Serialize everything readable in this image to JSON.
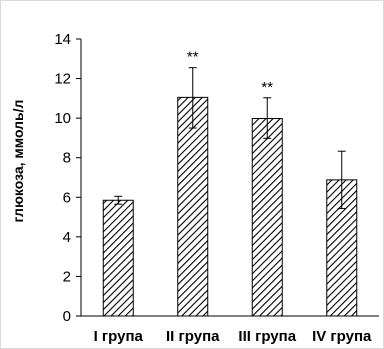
{
  "chart_data": {
    "type": "bar",
    "title": "",
    "xlabel": "",
    "ylabel": "глюкоза, ммоль/л",
    "ylim": [
      0,
      14
    ],
    "yticks": [
      0,
      2,
      4,
      6,
      8,
      10,
      12,
      14
    ],
    "grid": false,
    "legend": "none",
    "categories": [
      "I група",
      "II група",
      "III група",
      "IV група"
    ],
    "values": [
      5.85,
      11.05,
      9.98,
      6.88
    ],
    "error_upper": [
      0.2,
      1.5,
      1.05,
      1.45
    ],
    "error_lower": [
      0.2,
      1.55,
      1.0,
      1.45
    ],
    "significance": [
      "",
      "**",
      "**",
      ""
    ],
    "colors": {
      "bar_fill": "#ffffff",
      "hatch": "#000000",
      "axis": "#000000"
    }
  }
}
